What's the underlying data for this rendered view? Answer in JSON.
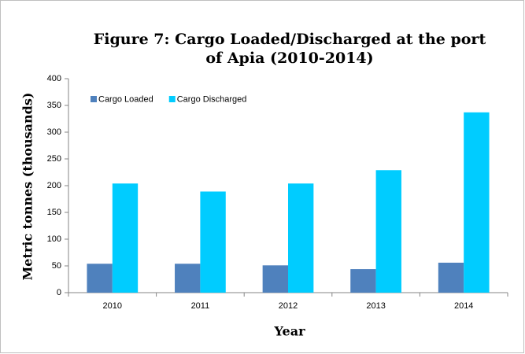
{
  "chart_data": {
    "type": "bar",
    "title": "Figure 7: Cargo Loaded/Discharged at the port of Apia (2010-2014)",
    "x_label": "Year",
    "y_label": "Metric tonnes (thousands)",
    "categories": [
      "2010",
      "2011",
      "2012",
      "2013",
      "2014"
    ],
    "series": [
      {
        "name": "Cargo Loaded",
        "color": "#4f81bd",
        "values": [
          54,
          54,
          51,
          44,
          56
        ]
      },
      {
        "name": "Cargo Discharged",
        "color": "#00ccff",
        "values": [
          204,
          189,
          204,
          229,
          337
        ]
      }
    ],
    "ylim": [
      0,
      400
    ],
    "yticks": [
      0,
      50,
      100,
      150,
      200,
      250,
      300,
      350,
      400
    ],
    "grid": false,
    "legend": "top-left"
  }
}
